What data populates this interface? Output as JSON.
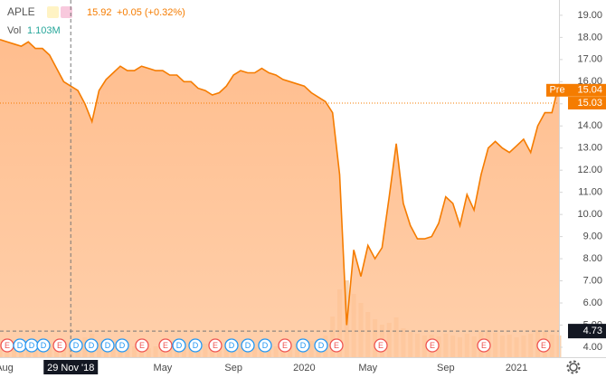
{
  "chart_data": {
    "type": "area",
    "symbol": "APLE",
    "price": 15.92,
    "change": "+0.05 (+0.32%)",
    "volume": {
      "name": "Vol",
      "label": "1.103M",
      "color": "#f3c49a",
      "values": [
        1.2,
        1.1,
        1.3,
        1.0,
        1.2,
        1.1,
        1.4,
        1.3,
        1.6,
        1.8,
        1.5,
        1.4,
        2.2,
        2.6,
        1.6,
        1.3,
        1.2,
        1.1,
        1.0,
        1.2,
        1.1,
        1.0,
        1.2,
        1.1,
        1.3,
        1.0,
        1.2,
        1.4,
        1.3,
        1.5,
        1.6,
        1.4,
        1.2,
        1.1,
        1.0,
        1.2,
        1.1,
        1.0,
        1.3,
        1.2,
        1.4,
        1.3,
        1.5,
        1.4,
        1.8,
        2.0,
        2.4,
        4.5,
        7.5,
        8.5,
        7.0,
        6.0,
        5.0,
        4.2,
        3.6,
        3.8,
        4.4,
        3.2,
        2.8,
        2.6,
        2.4,
        2.5,
        2.3,
        2.6,
        2.4,
        2.2,
        2.6,
        2.3,
        2.8,
        3.0,
        2.7,
        2.4,
        2.5,
        2.2,
        2.4,
        2.6,
        3.0,
        2.8,
        2.5,
        2.4
      ]
    },
    "categories": [
      "Aug",
      null,
      null,
      null,
      null,
      null,
      null,
      null,
      null,
      null,
      "29 Nov '18",
      null,
      null,
      null,
      null,
      null,
      null,
      null,
      null,
      null,
      null,
      null,
      null,
      "May",
      null,
      null,
      null,
      null,
      null,
      null,
      null,
      null,
      null,
      "Sep",
      null,
      null,
      null,
      null,
      null,
      null,
      null,
      null,
      null,
      "2020",
      null,
      null,
      null,
      null,
      null,
      null,
      null,
      null,
      "May",
      null,
      null,
      null,
      null,
      null,
      null,
      null,
      null,
      null,
      null,
      "Sep",
      null,
      null,
      null,
      null,
      null,
      null,
      null,
      null,
      null,
      "2021",
      null,
      null,
      null,
      null,
      null,
      null
    ],
    "series": [
      {
        "name": "APLE",
        "color": "#f57c00",
        "values": [
          17.9,
          17.8,
          17.7,
          17.6,
          17.8,
          17.5,
          17.5,
          17.2,
          16.6,
          16.0,
          15.8,
          15.6,
          15.0,
          14.2,
          15.6,
          16.1,
          16.4,
          16.7,
          16.5,
          16.5,
          16.7,
          16.6,
          16.5,
          16.5,
          16.3,
          16.3,
          16.0,
          16.0,
          15.7,
          15.6,
          15.4,
          15.5,
          15.8,
          16.3,
          16.5,
          16.4,
          16.4,
          16.6,
          16.4,
          16.3,
          16.1,
          16.0,
          15.9,
          15.8,
          15.5,
          15.3,
          15.1,
          14.6,
          11.8,
          5.0,
          8.4,
          7.2,
          8.6,
          8.0,
          8.5,
          10.8,
          13.2,
          10.5,
          9.5,
          8.9,
          8.9,
          9.0,
          9.6,
          10.8,
          10.5,
          9.5,
          10.9,
          10.2,
          11.8,
          13.0,
          13.3,
          13.0,
          12.8,
          13.1,
          13.4,
          12.8,
          14.0,
          14.6,
          14.6,
          15.9
        ]
      }
    ],
    "ylim": [
      3.55,
      19.69
    ],
    "yticks": [
      {
        "value": 4,
        "label": "4.00"
      },
      {
        "value": 5,
        "label": "5.00"
      },
      {
        "value": 6,
        "label": "6.00"
      },
      {
        "value": 7,
        "label": "7.00"
      },
      {
        "value": 8,
        "label": "8.00"
      },
      {
        "value": 9,
        "label": "9.00"
      },
      {
        "value": 10,
        "label": "10.00"
      },
      {
        "value": 11,
        "label": "11.00"
      },
      {
        "value": 12,
        "label": "12.00"
      },
      {
        "value": 13,
        "label": "13.00"
      },
      {
        "value": 14,
        "label": "14.00"
      },
      {
        "value": 15,
        "label": "15.00"
      },
      {
        "value": 16,
        "label": "16.00"
      },
      {
        "value": 17,
        "label": "17.00"
      },
      {
        "value": 18,
        "label": "18.00"
      },
      {
        "value": 19,
        "label": "19.00"
      }
    ],
    "last_price": 15.03,
    "pre_market": {
      "label": "Pre",
      "value": 15.04
    },
    "crosshair_price": 4.73,
    "crosshair_index": 10,
    "events": [
      "E",
      "D",
      "D",
      "D",
      "E",
      "D",
      "D",
      "D",
      "D",
      "E",
      "E",
      "D",
      "D",
      "E",
      "D",
      "D",
      "D",
      "E",
      "D",
      "D",
      "E",
      "E",
      "E",
      "E",
      "E"
    ]
  }
}
